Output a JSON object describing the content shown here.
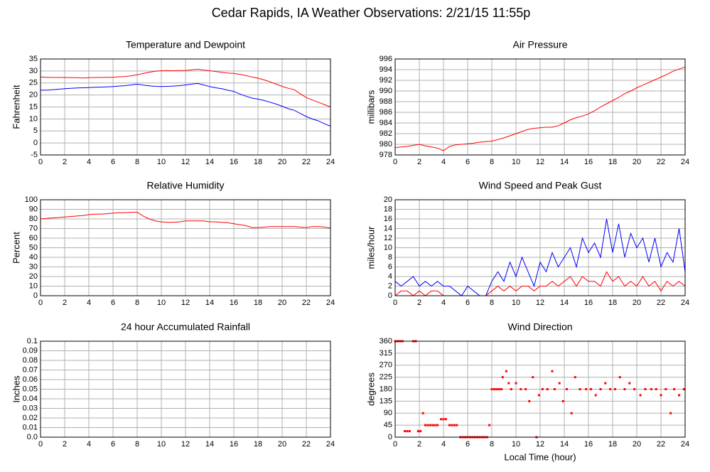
{
  "title": "Cedar Rapids, IA Weather Observations: 2/21/15 11:55p",
  "chart_data": [
    {
      "type": "line",
      "title": "Temperature and Dewpoint",
      "ylabel": "Fahrenheit",
      "grid": true,
      "xlim": [
        0,
        24
      ],
      "xticks": [
        0,
        2,
        4,
        6,
        8,
        10,
        12,
        14,
        16,
        18,
        20,
        22,
        24
      ],
      "ylim": [
        -5,
        35
      ],
      "yticks": [
        -5,
        0,
        5,
        10,
        15,
        20,
        25,
        30,
        35
      ],
      "x": [
        0,
        0.5,
        1,
        1.5,
        2,
        2.5,
        3,
        3.5,
        4,
        4.5,
        5,
        5.5,
        6,
        6.5,
        7,
        7.5,
        8,
        8.5,
        9,
        9.5,
        10,
        10.5,
        11,
        11.5,
        12,
        12.5,
        13,
        13.5,
        14,
        14.5,
        15,
        15.5,
        16,
        16.5,
        17,
        17.5,
        18,
        18.5,
        19,
        19.5,
        20,
        20.5,
        21,
        21.5,
        22,
        22.5,
        23,
        23.5,
        24
      ],
      "series": [
        {
          "color": "#ff0000",
          "values": [
            27.5,
            27.4,
            27.3,
            27.3,
            27.3,
            27.2,
            27.2,
            27.1,
            27.2,
            27.3,
            27.3,
            27.4,
            27.4,
            27.6,
            27.7,
            28,
            28.4,
            29,
            29.5,
            29.9,
            30.1,
            30.2,
            30.1,
            30.2,
            30.2,
            30.5,
            30.7,
            30.4,
            30.1,
            29.8,
            29.5,
            29.1,
            29,
            28.6,
            28.1,
            27.5,
            27,
            26.3,
            25.5,
            24.5,
            23.6,
            22.8,
            22.2,
            20.5,
            18.9,
            17.9,
            17,
            16,
            15
          ]
        },
        {
          "color": "#0000ff",
          "values": [
            22,
            22,
            22.2,
            22.4,
            22.6,
            22.8,
            22.9,
            23,
            23.1,
            23.2,
            23.3,
            23.4,
            23.5,
            23.7,
            23.9,
            24.2,
            24.5,
            24.1,
            23.8,
            23.6,
            23.5,
            23.6,
            23.7,
            23.9,
            24.2,
            24.5,
            24.8,
            24.2,
            23.5,
            23,
            22.6,
            22,
            21.5,
            20.4,
            19.5,
            18.7,
            18.3,
            17.7,
            17,
            16.2,
            15.3,
            14.3,
            13.6,
            12.3,
            11,
            10,
            9.2,
            8,
            7
          ]
        }
      ]
    },
    {
      "type": "line",
      "title": "Air Pressure",
      "ylabel": "millibars",
      "grid": true,
      "xlim": [
        0,
        24
      ],
      "xticks": [
        0,
        2,
        4,
        6,
        8,
        10,
        12,
        14,
        16,
        18,
        20,
        22,
        24
      ],
      "ylim": [
        978,
        996
      ],
      "yticks": [
        978,
        980,
        982,
        984,
        986,
        988,
        990,
        992,
        994,
        996
      ],
      "x": [
        0,
        0.5,
        1,
        1.5,
        2,
        2.5,
        3,
        3.5,
        4,
        4.5,
        5,
        5.5,
        6,
        6.5,
        7,
        7.5,
        8,
        8.5,
        9,
        9.5,
        10,
        10.5,
        11,
        11.5,
        12,
        12.5,
        13,
        13.5,
        14,
        14.5,
        15,
        15.5,
        16,
        16.5,
        17,
        17.5,
        18,
        18.5,
        19,
        19.5,
        20,
        20.5,
        21,
        21.5,
        22,
        22.5,
        23,
        23.5,
        24
      ],
      "series": [
        {
          "color": "#ff0000",
          "values": [
            979.4,
            979.5,
            979.6,
            979.8,
            980,
            979.7,
            979.5,
            979.3,
            978.8,
            979.6,
            979.9,
            980,
            980.1,
            980.2,
            980.4,
            980.5,
            980.6,
            980.9,
            981.2,
            981.6,
            982,
            982.4,
            982.8,
            983,
            983.1,
            983.2,
            983.2,
            983.5,
            984,
            984.6,
            985,
            985.3,
            985.7,
            986.3,
            987,
            987.6,
            988.2,
            988.8,
            989.5,
            990,
            990.6,
            991.1,
            991.6,
            992.1,
            992.6,
            993.1,
            993.7,
            994.1,
            994.5
          ]
        }
      ]
    },
    {
      "type": "line",
      "title": "Relative Humidity",
      "ylabel": "Percent",
      "grid": true,
      "xlim": [
        0,
        24
      ],
      "xticks": [
        0,
        2,
        4,
        6,
        8,
        10,
        12,
        14,
        16,
        18,
        20,
        22,
        24
      ],
      "ylim": [
        0,
        100
      ],
      "yticks": [
        0,
        10,
        20,
        30,
        40,
        50,
        60,
        70,
        80,
        90,
        100
      ],
      "x": [
        0,
        0.5,
        1,
        1.5,
        2,
        2.5,
        3,
        3.5,
        4,
        4.5,
        5,
        5.5,
        6,
        6.5,
        7,
        7.5,
        8,
        8.5,
        9,
        9.5,
        10,
        10.5,
        11,
        11.5,
        12,
        12.5,
        13,
        13.5,
        14,
        14.5,
        15,
        15.5,
        16,
        16.5,
        17,
        17.5,
        18,
        18.5,
        19,
        19.5,
        20,
        20.5,
        21,
        21.5,
        22,
        22.5,
        23,
        23.5,
        24
      ],
      "series": [
        {
          "color": "#ff0000",
          "values": [
            80,
            80.5,
            81,
            81.5,
            82,
            82.5,
            83,
            83.5,
            84.5,
            85,
            85,
            85.5,
            86,
            86.5,
            86.5,
            87,
            87,
            83,
            80,
            78,
            77,
            76.5,
            76.5,
            77,
            78,
            78,
            78,
            78,
            77,
            77,
            76.5,
            76,
            75,
            74,
            73,
            71,
            71,
            71.5,
            72,
            72,
            72,
            72,
            72,
            71.5,
            71,
            72,
            72,
            71.5,
            70.5
          ]
        }
      ]
    },
    {
      "type": "line",
      "title": "Wind Speed and Peak Gust",
      "ylabel": "miles/hour",
      "grid": true,
      "xlim": [
        0,
        24
      ],
      "xticks": [
        0,
        2,
        4,
        6,
        8,
        10,
        12,
        14,
        16,
        18,
        20,
        22,
        24
      ],
      "ylim": [
        0,
        20
      ],
      "yticks": [
        0,
        2,
        4,
        6,
        8,
        10,
        12,
        14,
        16,
        18,
        20
      ],
      "x": [
        0,
        0.5,
        1,
        1.5,
        2,
        2.5,
        3,
        3.5,
        4,
        4.5,
        5,
        5.5,
        6,
        6.5,
        7,
        7.5,
        8,
        8.5,
        9,
        9.5,
        10,
        10.5,
        11,
        11.5,
        12,
        12.5,
        13,
        13.5,
        14,
        14.5,
        15,
        15.5,
        16,
        16.5,
        17,
        17.5,
        18,
        18.5,
        19,
        19.5,
        20,
        20.5,
        21,
        21.5,
        22,
        22.5,
        23,
        23.5,
        24
      ],
      "series": [
        {
          "color": "#0000ff",
          "values": [
            3,
            2,
            3,
            4,
            2,
            3,
            2,
            3,
            2,
            2,
            1,
            0,
            2,
            1,
            0,
            0,
            3,
            5,
            3,
            7,
            4,
            8,
            5,
            2,
            7,
            5,
            9,
            6,
            8,
            10,
            6,
            12,
            9,
            11,
            8,
            16,
            9,
            15,
            8,
            13,
            10,
            12,
            7,
            12,
            6,
            9,
            7,
            14,
            5
          ]
        },
        {
          "color": "#ff0000",
          "values": [
            0,
            1,
            1,
            0,
            1,
            0,
            1,
            1,
            0,
            0,
            0,
            0,
            0,
            0,
            0,
            0,
            1,
            2,
            1,
            2,
            1,
            2,
            2,
            1,
            2,
            2,
            3,
            2,
            3,
            4,
            2,
            4,
            3,
            3,
            2,
            5,
            3,
            4,
            2,
            3,
            2,
            4,
            2,
            3,
            1,
            3,
            2,
            3,
            2
          ]
        }
      ]
    },
    {
      "type": "line",
      "title": "24 hour Accumulated Rainfall",
      "ylabel": "Inches",
      "grid": true,
      "xlim": [
        0,
        24
      ],
      "xticks": [
        0,
        2,
        4,
        6,
        8,
        10,
        12,
        14,
        16,
        18,
        20,
        22,
        24
      ],
      "ylim": [
        0,
        0.1
      ],
      "yticks": [
        {
          "value": 0,
          "label": "0.0"
        },
        0.01,
        0.02,
        0.03,
        0.04,
        0.05,
        0.06,
        0.07,
        0.08,
        0.09,
        0.1
      ],
      "x": [
        0,
        24
      ],
      "series": [
        {
          "color": "#ff0000",
          "values": [
            0,
            0
          ]
        }
      ]
    },
    {
      "type": "scatter",
      "title": "Wind Direction",
      "ylabel": "degrees",
      "xlabel": "Local Time (hour)",
      "grid": true,
      "xlim": [
        0,
        24
      ],
      "xticks": [
        0,
        2,
        4,
        6,
        8,
        10,
        12,
        14,
        16,
        18,
        20,
        22,
        24
      ],
      "ylim": [
        0,
        360
      ],
      "yticks": [
        0,
        45,
        90,
        135,
        180,
        225,
        270,
        315,
        360
      ],
      "x": [
        0,
        0.2,
        0.4,
        0.6,
        0.8,
        1,
        1.2,
        1.5,
        1.7,
        1.9,
        2.1,
        2.3,
        2.5,
        2.7,
        2.9,
        3.1,
        3.3,
        3.5,
        3.8,
        4,
        4.2,
        4.5,
        4.7,
        4.9,
        5.1,
        5.4,
        5.6,
        5.8,
        6,
        6.2,
        6.4,
        6.6,
        6.8,
        7,
        7.2,
        7.4,
        7.6,
        7.8,
        8,
        8.2,
        8.4,
        8.6,
        8.8,
        8.9,
        9.2,
        9.4,
        9.6,
        10,
        10.4,
        10.8,
        11.1,
        11.4,
        11.7,
        11.9,
        12.2,
        12.6,
        13,
        13.2,
        13.6,
        13.9,
        14.2,
        14.6,
        14.9,
        15.3,
        15.8,
        16.2,
        16.6,
        17,
        17.4,
        17.8,
        18.2,
        18.6,
        19,
        19.4,
        19.8,
        20.3,
        20.7,
        21.2,
        21.6,
        22,
        22.4,
        22.8,
        23.1,
        23.5,
        23.9
      ],
      "series": [
        {
          "color": "#ff0000",
          "values": [
            360,
            360,
            360,
            360,
            22.5,
            22.5,
            22.5,
            360,
            360,
            22.5,
            22.5,
            90,
            45,
            45,
            45,
            45,
            45,
            45,
            67.5,
            67.5,
            67.5,
            45,
            45,
            45,
            45,
            0,
            0,
            0,
            0,
            0,
            0,
            0,
            0,
            0,
            0,
            0,
            0,
            45,
            180,
            180,
            180,
            180,
            180,
            225,
            247.5,
            202.5,
            180,
            202.5,
            180,
            180,
            135,
            225,
            0,
            157.5,
            180,
            180,
            247.5,
            180,
            202.5,
            135,
            180,
            90,
            225,
            180,
            180,
            180,
            157.5,
            180,
            202.5,
            180,
            180,
            225,
            180,
            202.5,
            180,
            157.5,
            180,
            180,
            180,
            157.5,
            180,
            90,
            180,
            157.5,
            180
          ]
        }
      ]
    }
  ]
}
